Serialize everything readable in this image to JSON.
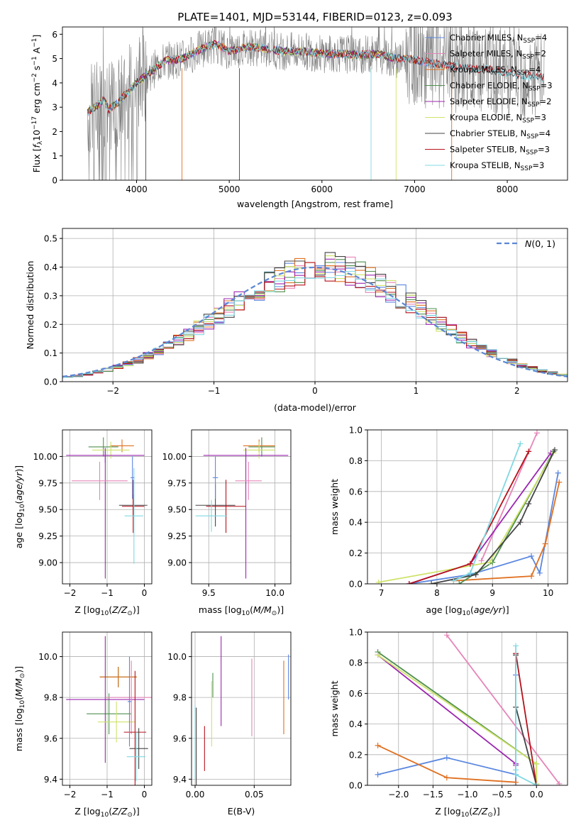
{
  "figure_title": "PLATE=1401, MJD=53144, FIBERID=0123, z=0.093",
  "colors": {
    "c1": "#5b87e0",
    "c2": "#e685b8",
    "c3": "#e07020",
    "c4": "#4f8f4f",
    "c5": "#9c27b0",
    "c6": "#cfe36a",
    "c7": "#444444",
    "c8": "#b5121b",
    "c9": "#80d8e2",
    "normal": "#5b87d6",
    "spec_obs": "#808080"
  },
  "chart_data": [
    {
      "id": "spectrum",
      "type": "line",
      "title": "PLATE=1401, MJD=53144, FIBERID=0123, z=0.093",
      "xlabel": "wavelength [Angstrom, rest frame]",
      "ylabel": "Flux [f_λ 10^-17 erg cm^-2 s^-1 A^-1]",
      "xlim": [
        3200,
        8650
      ],
      "ylim": [
        0,
        6.3
      ],
      "xticks": [
        4000,
        5000,
        6000,
        7000,
        8000
      ],
      "yticks": [
        0,
        1,
        2,
        3,
        4,
        5,
        6
      ],
      "grid": false,
      "legend_position": "top-right",
      "continuum_x": [
        3470,
        3550,
        3650,
        3700,
        3800,
        3900,
        4000,
        4100,
        4300,
        4500,
        4700,
        4850,
        5000,
        5200,
        5400,
        5600,
        5800,
        6000,
        6200,
        6400,
        6600,
        6800,
        7000,
        7200,
        7400,
        7600,
        7800,
        8000,
        8200,
        8400
      ],
      "continuum_y": [
        2.8,
        3.0,
        3.3,
        2.9,
        3.2,
        3.6,
        4.0,
        4.3,
        4.9,
        5.0,
        5.4,
        5.6,
        5.3,
        5.5,
        5.4,
        5.3,
        5.3,
        5.2,
        5.2,
        5.15,
        5.2,
        5.0,
        4.95,
        4.8,
        4.7,
        4.6,
        4.55,
        4.4,
        4.3,
        4.2
      ],
      "series": [
        {
          "name": "Chabrier MILES, N_SSP=4",
          "color": "c1",
          "xmax": 7400
        },
        {
          "name": "Salpeter MILES, N_SSP=2",
          "color": "c2",
          "xmax": 7400
        },
        {
          "name": "Kroupa MILES, N_SSP=4",
          "color": "c3",
          "xmax": 7400
        },
        {
          "name": "Chabrier ELODIE, N_SSP=3",
          "color": "c4",
          "xmax": 6800
        },
        {
          "name": "Salpeter ELODIE, N_SSP=2",
          "color": "c5",
          "xmax": 6800
        },
        {
          "name": "Kroupa ELODIE, N_SSP=3",
          "color": "c6",
          "xmax": 6800
        },
        {
          "name": "Chabrier STELIB, N_SSP=4",
          "color": "c7",
          "xmax": 8400
        },
        {
          "name": "Salpeter STELIB, N_SSP=3",
          "color": "c8",
          "xmax": 8400
        },
        {
          "name": "Kroupa STELIB, N_SSP=3",
          "color": "c9",
          "xmax": 8400
        }
      ]
    },
    {
      "id": "residuals",
      "type": "line",
      "xlabel": "(data-model)/error",
      "ylabel": "Normed distribution",
      "xlim": [
        -2.5,
        2.5
      ],
      "ylim": [
        0,
        0.535
      ],
      "xticks": [
        -2,
        -1,
        0,
        1,
        2
      ],
      "yticks": [
        0.0,
        0.1,
        0.2,
        0.3,
        0.4,
        0.5
      ],
      "grid": true,
      "legend_position": "top-right",
      "reference_curve": "N(0, 1)",
      "bin_width": 0.1,
      "series_colors": [
        "c1",
        "c2",
        "c3",
        "c4",
        "c5",
        "c6",
        "c7",
        "c8",
        "c9"
      ]
    },
    {
      "id": "age_vs_Z",
      "type": "scatter",
      "xlabel": "Z [log10(Z/Z⊙)]",
      "ylabel": "age [log10(age/yr)]",
      "xlim": [
        -2.2,
        0.2
      ],
      "ylim": [
        8.8,
        10.25
      ],
      "xticks": [
        -2,
        -1,
        0
      ],
      "yticks": [
        9.0,
        9.25,
        9.5,
        9.75,
        10.0
      ],
      "grid": true,
      "points": [
        {
          "x": -1.1,
          "y": 10.09,
          "xerr": 0.4,
          "yerr": 0.09,
          "color": "c4"
        },
        {
          "x": -0.6,
          "y": 10.1,
          "xerr": 0.32,
          "yerr": 0.06,
          "color": "c3"
        },
        {
          "x": -0.9,
          "y": 10.06,
          "xerr": 0.5,
          "yerr": 0.08,
          "color": "c6"
        },
        {
          "x": -1.05,
          "y": 10.01,
          "xerr": 1.05,
          "yerr": 0.07,
          "color": "c5"
        },
        {
          "x": -1.05,
          "y": 9.45,
          "xerr": 0.0,
          "yerr": 0.6,
          "color": "c5"
        },
        {
          "x": -1.2,
          "y": 9.77,
          "xerr": 0.75,
          "yerr": 0.18,
          "color": "c2"
        },
        {
          "x": -0.3,
          "y": 9.54,
          "xerr": 0.38,
          "yerr": 0.1,
          "color": "c7"
        },
        {
          "x": -0.3,
          "y": 9.53,
          "xerr": 0.3,
          "yerr": 0.25,
          "color": "c8"
        },
        {
          "x": -0.28,
          "y": 9.44,
          "xerr": 0.25,
          "yerr": 0.45,
          "color": "c9"
        },
        {
          "x": -0.32,
          "y": 9.8,
          "xerr": 0.05,
          "yerr": 0.2,
          "color": "c1"
        }
      ]
    },
    {
      "id": "age_vs_mass",
      "type": "scatter",
      "xlabel": "mass [log10(M/M⊙)]",
      "ylabel": "",
      "xlim": [
        9.37,
        10.12
      ],
      "ylim": [
        8.8,
        10.25
      ],
      "xticks": [
        9.5,
        10.0
      ],
      "yticks": [
        9.0,
        9.25,
        9.5,
        9.75,
        10.0
      ],
      "grid": true,
      "points": [
        {
          "x": 9.9,
          "y": 10.09,
          "xerr": 0.1,
          "yerr": 0.09,
          "color": "c4"
        },
        {
          "x": 9.88,
          "y": 10.1,
          "xerr": 0.12,
          "yerr": 0.06,
          "color": "c3"
        },
        {
          "x": 9.88,
          "y": 10.06,
          "xerr": 0.12,
          "yerr": 0.08,
          "color": "c6"
        },
        {
          "x": 9.78,
          "y": 10.01,
          "xerr": 0.32,
          "yerr": 0.07,
          "color": "c5"
        },
        {
          "x": 9.78,
          "y": 9.45,
          "xerr": 0.0,
          "yerr": 0.6,
          "color": "c5"
        },
        {
          "x": 9.8,
          "y": 9.77,
          "xerr": 0.1,
          "yerr": 0.18,
          "color": "c2"
        },
        {
          "x": 9.55,
          "y": 9.54,
          "xerr": 0.15,
          "yerr": 0.2,
          "color": "c7"
        },
        {
          "x": 9.63,
          "y": 9.53,
          "xerr": 0.15,
          "yerr": 0.25,
          "color": "c8"
        },
        {
          "x": 9.52,
          "y": 9.44,
          "xerr": 0.12,
          "yerr": 0.15,
          "color": "c9"
        },
        {
          "x": 9.55,
          "y": 9.8,
          "xerr": 0.02,
          "yerr": 0.2,
          "color": "c1"
        }
      ]
    },
    {
      "id": "weight_vs_age",
      "type": "line",
      "xlabel": "age [log10(age/yr)]",
      "ylabel": "mass weight",
      "xlim": [
        6.75,
        10.35
      ],
      "ylim": [
        0,
        1.0
      ],
      "xticks": [
        7,
        8,
        9,
        10
      ],
      "yticks": [
        0.0,
        0.2,
        0.4,
        0.6,
        0.8,
        1.0
      ],
      "grid": true,
      "series": [
        {
          "color": "c1",
          "x": [
            7.5,
            8.6,
            9.7,
            9.85,
            10.18
          ],
          "y": [
            0.0,
            0.06,
            0.18,
            0.07,
            0.72
          ]
        },
        {
          "color": "c2",
          "x": [
            8.8,
            9.8
          ],
          "y": [
            0.15,
            0.98
          ]
        },
        {
          "color": "c3",
          "x": [
            8.3,
            9.7,
            9.95,
            10.2
          ],
          "y": [
            0.02,
            0.05,
            0.26,
            0.66
          ]
        },
        {
          "color": "c4",
          "x": [
            8.4,
            9.0,
            10.1
          ],
          "y": [
            0.0,
            0.14,
            0.86
          ]
        },
        {
          "color": "c5",
          "x": [
            7.5,
            8.6,
            10.05
          ],
          "y": [
            0.0,
            0.13,
            0.85
          ]
        },
        {
          "color": "c6",
          "x": [
            6.95,
            8.95,
            10.1
          ],
          "y": [
            0.01,
            0.14,
            0.85
          ]
        },
        {
          "color": "c7",
          "x": [
            7.9,
            8.7,
            9.5,
            9.65,
            10.12
          ],
          "y": [
            0.0,
            0.06,
            0.4,
            0.52,
            0.87
          ]
        },
        {
          "color": "c8",
          "x": [
            7.5,
            8.6,
            9.65
          ],
          "y": [
            0.0,
            0.13,
            0.86
          ]
        },
        {
          "color": "c9",
          "x": [
            8.3,
            8.6,
            9.5
          ],
          "y": [
            0.02,
            0.07,
            0.91
          ]
        }
      ]
    },
    {
      "id": "mass_vs_Z",
      "type": "scatter",
      "xlabel": "Z [log10(Z/Z⊙)]",
      "ylabel": "mass [log10(M/M⊙)]",
      "xlim": [
        -2.2,
        0.2
      ],
      "ylim": [
        9.37,
        10.12
      ],
      "xticks": [
        -2,
        -1,
        0
      ],
      "yticks": [
        9.4,
        9.6,
        9.8,
        10.0
      ],
      "grid": true,
      "points": [
        {
          "x": -0.7,
          "y": 9.9,
          "xerr": 0.5,
          "yerr": 0.05,
          "color": "c4"
        },
        {
          "x": -0.7,
          "y": 9.9,
          "xerr": 0.5,
          "yerr": 0.05,
          "color": "c3"
        },
        {
          "x": -0.95,
          "y": 9.72,
          "xerr": 0.6,
          "yerr": 0.1,
          "color": "c4"
        },
        {
          "x": -1.05,
          "y": 9.79,
          "xerr": 1.05,
          "yerr": 0.31,
          "color": "c5"
        },
        {
          "x": -0.75,
          "y": 9.68,
          "xerr": 0.5,
          "yerr": 0.1,
          "color": "c6"
        },
        {
          "x": -0.35,
          "y": 9.8,
          "xerr": 0.7,
          "yerr": 0.18,
          "color": "c2"
        },
        {
          "x": -0.25,
          "y": 9.63,
          "xerr": 0.3,
          "yerr": 0.3,
          "color": "c8"
        },
        {
          "x": -0.15,
          "y": 9.55,
          "xerr": 0.25,
          "yerr": 0.1,
          "color": "c7"
        },
        {
          "x": -0.22,
          "y": 9.51,
          "xerr": 0.25,
          "yerr": 0.12,
          "color": "c9"
        },
        {
          "x": -0.4,
          "y": 9.78,
          "xerr": 0.05,
          "yerr": 0.22,
          "color": "c1"
        }
      ]
    },
    {
      "id": "mass_vs_ebv",
      "type": "scatter",
      "xlabel": "E(B-V)",
      "ylabel": "",
      "xlim": [
        -0.003,
        0.081
      ],
      "ylim": [
        9.37,
        10.12
      ],
      "xticks": [
        0.0,
        0.05
      ],
      "yticks": [
        9.4,
        9.6,
        9.8,
        10.0
      ],
      "grid": true,
      "points": [
        {
          "x": 0.0,
          "y": 9.58,
          "yerr": 0.18,
          "color": "c9"
        },
        {
          "x": 0.001,
          "y": 9.55,
          "yerr": 0.2,
          "color": "c7"
        },
        {
          "x": 0.008,
          "y": 9.55,
          "yerr": 0.11,
          "color": "c8"
        },
        {
          "x": 0.014,
          "y": 9.72,
          "yerr": 0.16,
          "color": "c6"
        },
        {
          "x": 0.015,
          "y": 9.86,
          "yerr": 0.06,
          "color": "c4"
        },
        {
          "x": 0.022,
          "y": 9.88,
          "yerr": 0.22,
          "color": "c5"
        },
        {
          "x": 0.048,
          "y": 9.8,
          "yerr": 0.19,
          "color": "c2"
        },
        {
          "x": 0.075,
          "y": 9.8,
          "yerr": 0.18,
          "color": "c3"
        },
        {
          "x": 0.079,
          "y": 9.9,
          "yerr": 0.11,
          "color": "c1"
        }
      ]
    },
    {
      "id": "weight_vs_Z",
      "type": "line",
      "xlabel": "Z [log10(Z/Z⊙)]",
      "ylabel": "mass weight",
      "xlim": [
        -2.45,
        0.45
      ],
      "ylim": [
        0,
        1.0
      ],
      "xticks": [
        -2.0,
        -1.5,
        -1.0,
        -0.5,
        0.0
      ],
      "yticks": [
        0.0,
        0.2,
        0.4,
        0.6,
        0.8,
        1.0
      ],
      "grid": true,
      "series": [
        {
          "color": "c1",
          "x": [
            -2.3,
            -1.3,
            -0.3,
            -0.3,
            -0.3
          ],
          "y": [
            0.07,
            0.18,
            0.07,
            0.72,
            0.0
          ]
        },
        {
          "color": "c2",
          "x": [
            -1.3,
            0.33
          ],
          "y": [
            0.98,
            0.01
          ]
        },
        {
          "color": "c3",
          "x": [
            -2.3,
            -1.3,
            -0.3
          ],
          "y": [
            0.26,
            0.05,
            0.02
          ]
        },
        {
          "color": "c4",
          "x": [
            -2.3,
            0.0,
            0.0
          ],
          "y": [
            0.87,
            0.14,
            0.0
          ]
        },
        {
          "color": "c5",
          "x": [
            -2.3,
            -0.3,
            -0.3
          ],
          "y": [
            0.85,
            0.14,
            0.13
          ]
        },
        {
          "color": "c6",
          "x": [
            -2.3,
            0.0,
            0.0
          ],
          "y": [
            0.85,
            0.14,
            0.01
          ]
        },
        {
          "color": "c7",
          "x": [
            -0.3,
            -0.3,
            0.0
          ],
          "y": [
            0.85,
            0.51,
            0.0
          ]
        },
        {
          "color": "c8",
          "x": [
            -0.3,
            0.0
          ],
          "y": [
            0.86,
            0.0
          ]
        },
        {
          "color": "c9",
          "x": [
            -0.3,
            -0.3,
            -0.3,
            0.0
          ],
          "y": [
            0.91,
            0.1,
            0.07,
            0.0
          ]
        }
      ]
    }
  ]
}
